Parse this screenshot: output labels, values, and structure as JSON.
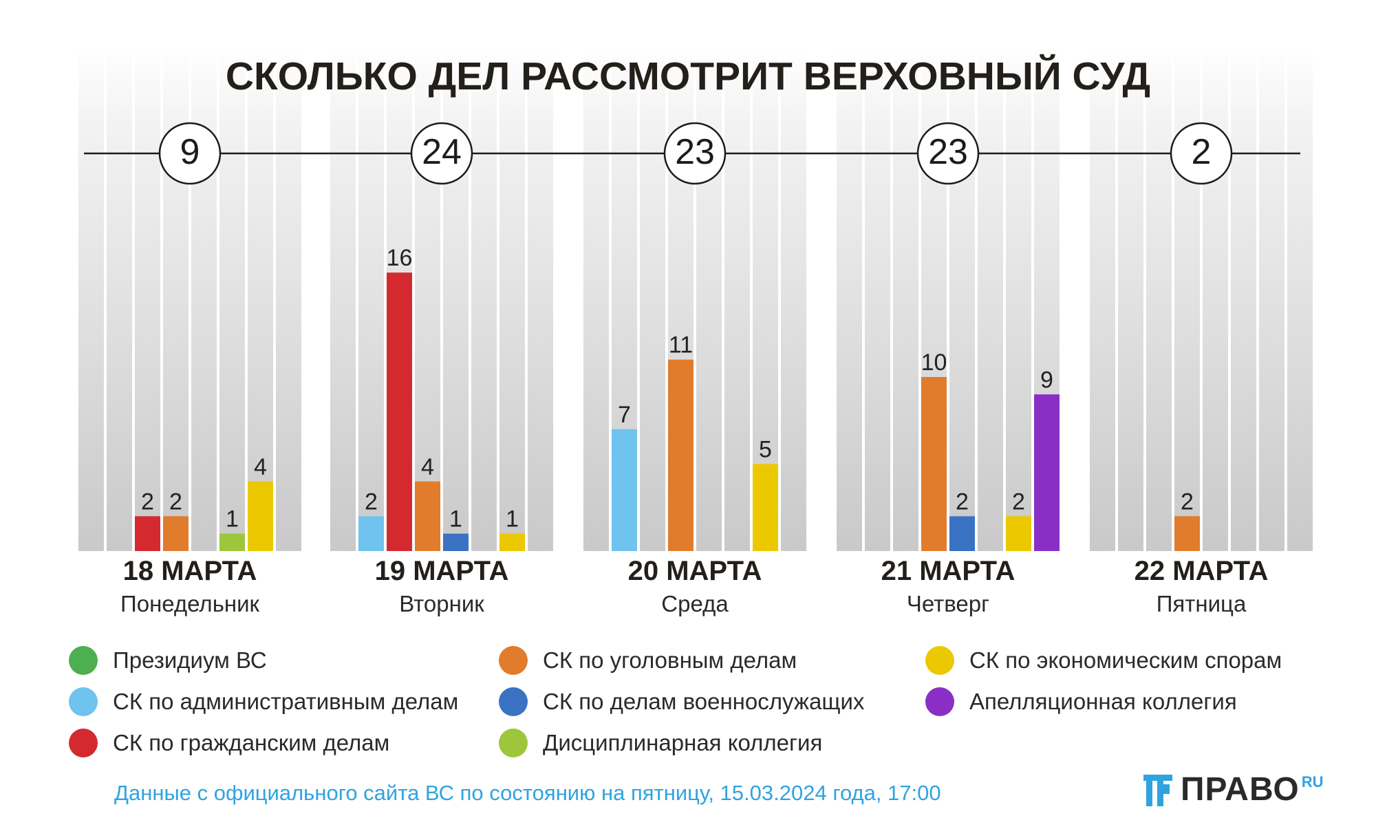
{
  "title": "СКОЛЬКО ДЕЛ РАССМОТРИТ ВЕРХОВНЫЙ СУД",
  "colors": {
    "prezidium": "#4caf50",
    "admin": "#6ec3ef",
    "civil": "#d42a2f",
    "criminal": "#e07c2c",
    "military": "#3a72c4",
    "disciplinary": "#9dc63c",
    "economic": "#ecc800",
    "appeal": "#8a2fc6",
    "accent": "#2fa3e0"
  },
  "chart_data": {
    "type": "bar",
    "title": "СКОЛЬКО ДЕЛ РАССМОТРИТ ВЕРХОВНЫЙ СУД",
    "series_order": [
      "prezidium",
      "admin",
      "civil",
      "criminal",
      "military",
      "disciplinary",
      "economic",
      "appeal"
    ],
    "days": [
      {
        "date": "18 МАРТА",
        "weekday": "Понедельник",
        "total": "9",
        "bars": [
          {
            "series": "civil",
            "value": 2
          },
          {
            "series": "criminal",
            "value": 2
          },
          {
            "series": "disciplinary",
            "value": 1
          },
          {
            "series": "economic",
            "value": 4
          }
        ]
      },
      {
        "date": "19 МАРТА",
        "weekday": "Вторник",
        "total": "24",
        "bars": [
          {
            "series": "admin",
            "value": 2
          },
          {
            "series": "civil",
            "value": 16
          },
          {
            "series": "criminal",
            "value": 4
          },
          {
            "series": "military",
            "value": 1
          },
          {
            "series": "economic",
            "value": 1
          }
        ]
      },
      {
        "date": "20 МАРТА",
        "weekday": "Среда",
        "total": "23",
        "bars": [
          {
            "series": "admin",
            "value": 7
          },
          {
            "series": "criminal",
            "value": 11
          },
          {
            "series": "economic",
            "value": 5
          }
        ]
      },
      {
        "date": "21 МАРТА",
        "weekday": "Четверг",
        "total": "23",
        "bars": [
          {
            "series": "criminal",
            "value": 10
          },
          {
            "series": "military",
            "value": 2
          },
          {
            "series": "economic",
            "value": 2
          },
          {
            "series": "appeal",
            "value": 9
          }
        ]
      },
      {
        "date": "22 МАРТА",
        "weekday": "Пятница",
        "total": "2",
        "bars": [
          {
            "series": "criminal",
            "value": 2
          }
        ]
      }
    ]
  },
  "legend": [
    {
      "key": "prezidium",
      "label": "Президиум ВС"
    },
    {
      "key": "admin",
      "label": "СК по административным делам"
    },
    {
      "key": "civil",
      "label": "СК по гражданским делам"
    },
    {
      "key": "criminal",
      "label": "СК по уголовным делам"
    },
    {
      "key": "military",
      "label": "СК по делам военнослужащих"
    },
    {
      "key": "disciplinary",
      "label": "Дисциплинарная коллегия"
    },
    {
      "key": "economic",
      "label": "СК по экономическим спорам"
    },
    {
      "key": "appeal",
      "label": "Апелляционная коллегия"
    }
  ],
  "source": "Данные с официального сайта ВС по состоянию на пятницу, 15.03.2024 года, 17:00",
  "logo": {
    "text": "ПРАВО",
    "sup": "RU"
  }
}
